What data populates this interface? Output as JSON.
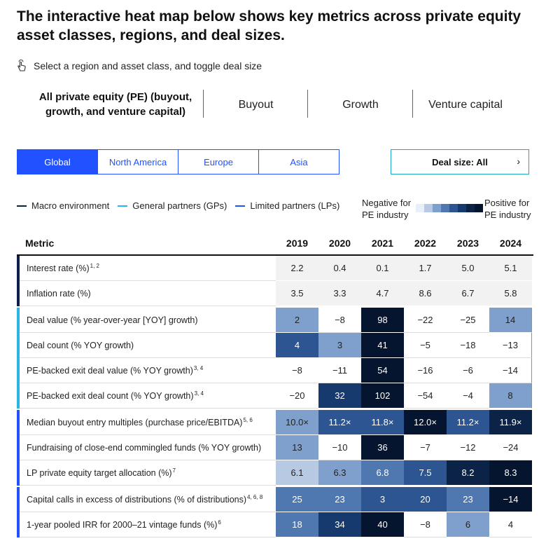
{
  "title": "The interactive heat map below shows key metrics across private equity asset classes, regions, and deal sizes.",
  "instruction": "Select a region and asset class, and toggle deal size",
  "asset_tabs": [
    "All private equity (PE) (buyout, growth, and venture capital)",
    "Buyout",
    "Growth",
    "Venture capital"
  ],
  "region_tabs": [
    "Global",
    "North America",
    "Europe",
    "Asia"
  ],
  "deal_size_label": "Deal size: All",
  "legend": {
    "macro": "Macro environment",
    "gps": "General partners (GPs)",
    "lps": "Limited partners (LPs)",
    "negative": "Negative for PE industry",
    "positive": "Positive for PE industry",
    "colors": {
      "macro": "#0b1f4d",
      "gps": "#29b6e6",
      "lps": "#2251ff"
    }
  },
  "scale_colors": [
    "#e9eff7",
    "#b7c9e3",
    "#7fa0cc",
    "#4f78b0",
    "#2c5591",
    "#173a6e",
    "#0b2347",
    "#051530"
  ],
  "chart_data": {
    "type": "heatmap",
    "header_metric": "Metric",
    "years": [
      "2019",
      "2020",
      "2021",
      "2022",
      "2023",
      "2024"
    ],
    "rows": [
      {
        "group": "macro",
        "label": "Interest rate (%)",
        "notes": "1, 2",
        "values": [
          "2.2",
          "0.4",
          "0.1",
          "1.7",
          "5.0",
          "5.1"
        ],
        "levels": [
          -1,
          -1,
          -1,
          -1,
          -1,
          -1
        ]
      },
      {
        "group": "macro",
        "label": "Inflation rate (%)",
        "notes": "",
        "values": [
          "3.5",
          "3.3",
          "4.7",
          "8.6",
          "6.7",
          "5.8"
        ],
        "levels": [
          -1,
          -1,
          -1,
          -1,
          -1,
          -1
        ]
      },
      {
        "group": "gps",
        "label": "Deal value (% year-over-year [YOY] growth)",
        "notes": "",
        "values": [
          "2",
          "−8",
          "98",
          "−22",
          "−25",
          "14"
        ],
        "levels": [
          2,
          0,
          7,
          0,
          0,
          2
        ]
      },
      {
        "group": "gps",
        "label": "Deal count (% YOY growth)",
        "notes": "",
        "values": [
          "4",
          "3",
          "41",
          "−5",
          "−18",
          "−13"
        ],
        "levels": [
          4,
          2,
          7,
          0,
          0,
          0
        ]
      },
      {
        "group": "gps",
        "label": "PE-backed exit deal value (% YOY growth)",
        "notes": "3, 4",
        "values": [
          "−8",
          "−11",
          "54",
          "−16",
          "−6",
          "−14"
        ],
        "levels": [
          0,
          0,
          7,
          0,
          0,
          0
        ]
      },
      {
        "group": "gps",
        "label": "PE-backed exit deal count (% YOY growth)",
        "notes": "3, 4",
        "values": [
          "−20",
          "32",
          "102",
          "−54",
          "−4",
          "8"
        ],
        "levels": [
          0,
          5,
          7,
          0,
          0,
          2
        ]
      },
      {
        "group": "lps",
        "label": "Median buyout entry multiples (purchase price/EBITDA)",
        "notes": "5, 6",
        "values": [
          "10.0×",
          "11.2×",
          "11.8×",
          "12.0×",
          "11.2×",
          "11.9×"
        ],
        "levels": [
          2,
          4,
          4,
          7,
          4,
          6
        ]
      },
      {
        "group": "lps",
        "label": "Fundraising of close-end commingled funds (% YOY growth)",
        "notes": "",
        "values": [
          "13",
          "−10",
          "36",
          "−7",
          "−12",
          "−24"
        ],
        "levels": [
          2,
          0,
          7,
          0,
          0,
          0
        ]
      },
      {
        "group": "lps",
        "label": "LP private equity target allocation (%)",
        "notes": "7",
        "values": [
          "6.1",
          "6.3",
          "6.8",
          "7.5",
          "8.2",
          "8.3"
        ],
        "levels": [
          1,
          2,
          3,
          4,
          6,
          7
        ]
      },
      {
        "group": "lps2",
        "label": "Capital calls in excess of distributions (% of distributions)",
        "notes": "4, 6, 8",
        "values": [
          "25",
          "23",
          "3",
          "20",
          "23",
          "−14"
        ],
        "levels": [
          3,
          3,
          4,
          4,
          3,
          7
        ]
      },
      {
        "group": "lps2",
        "label": "1-year pooled IRR for 2000–21 vintage funds (%)",
        "notes": "6",
        "values": [
          "18",
          "34",
          "40",
          "−8",
          "6",
          "4"
        ],
        "levels": [
          3,
          5,
          7,
          0,
          2,
          0
        ]
      }
    ]
  }
}
